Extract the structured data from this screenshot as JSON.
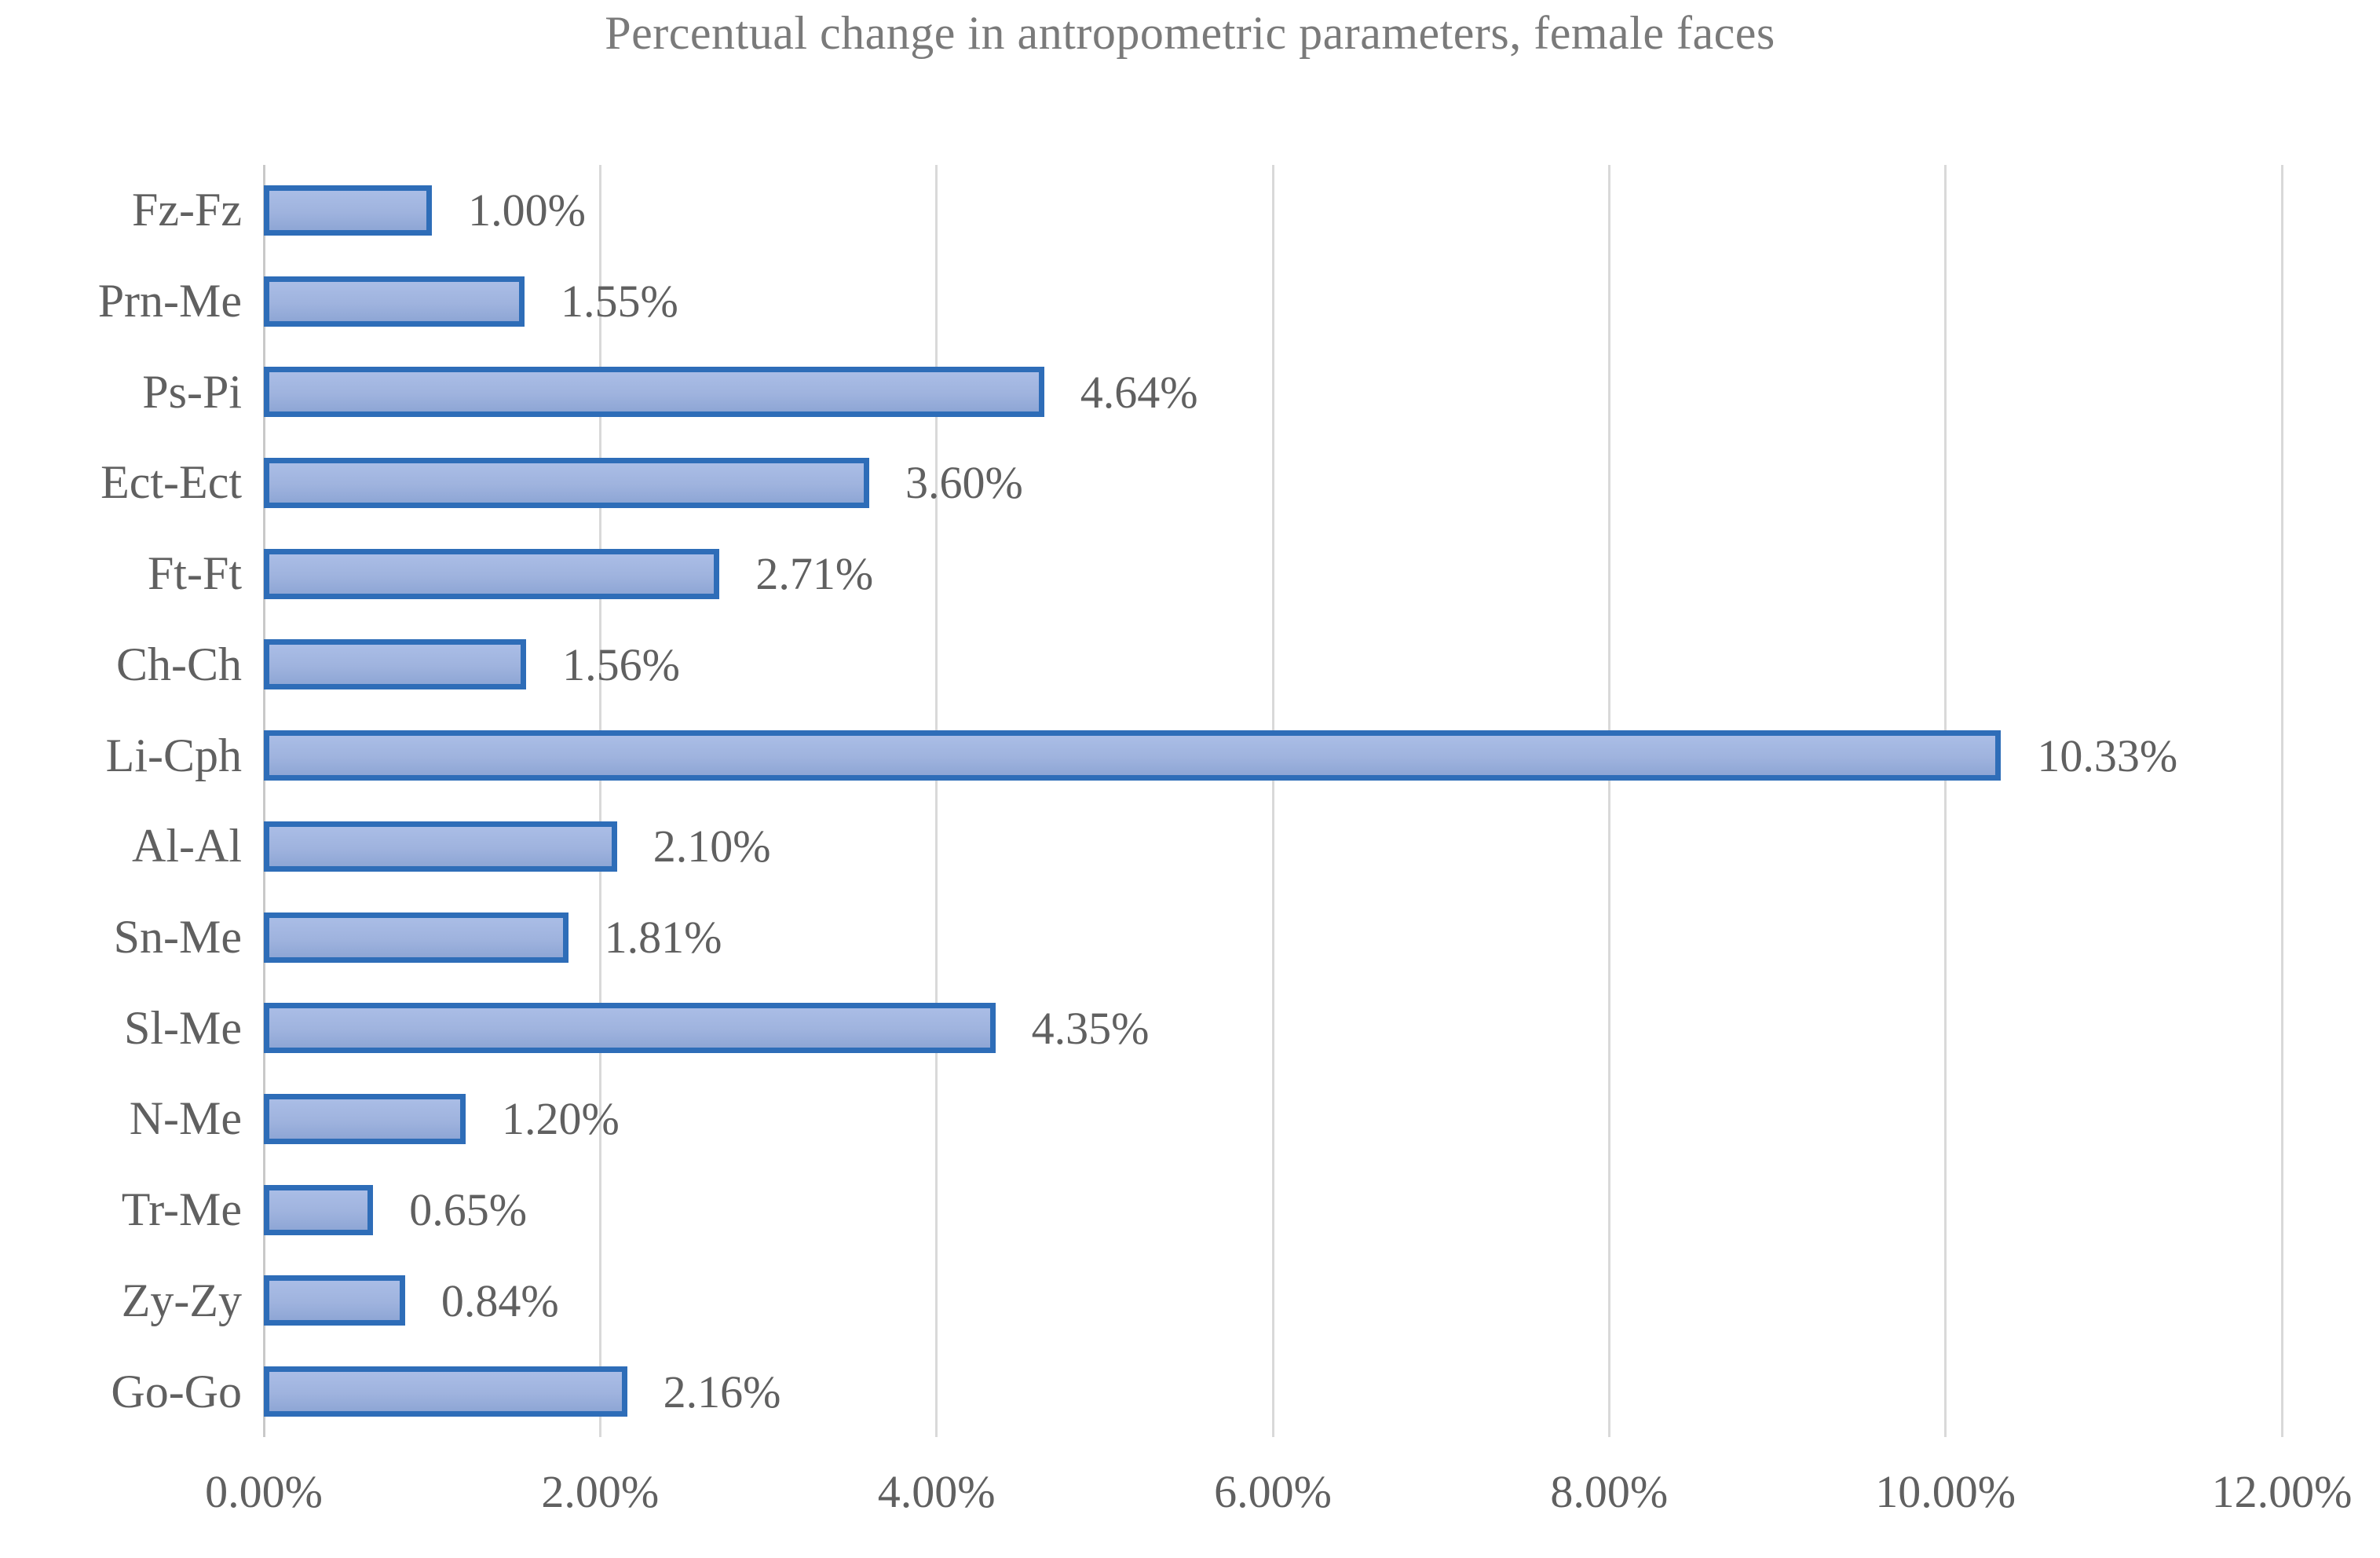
{
  "chart_data": {
    "type": "bar",
    "orientation": "horizontal",
    "title": "Percentual change in antropometric parameters, female faces",
    "categories": [
      "Fz-Fz",
      "Prn-Me",
      "Ps-Pi",
      "Ect-Ect",
      "Ft-Ft",
      "Ch-Ch",
      "Li-Cph",
      "Al-Al",
      "Sn-Me",
      "Sl-Me",
      "N-Me",
      "Tr-Me",
      "Zy-Zy",
      "Go-Go"
    ],
    "values": [
      1.0,
      1.55,
      4.64,
      3.6,
      2.71,
      1.56,
      10.33,
      2.1,
      1.81,
      4.35,
      1.2,
      0.65,
      0.84,
      2.16
    ],
    "value_labels": [
      "1.00%",
      "1.55%",
      "4.64%",
      "3.60%",
      "2.71%",
      "1.56%",
      "10.33%",
      "2.10%",
      "1.81%",
      "4.35%",
      "1.20%",
      "0.65%",
      "0.84%",
      "2.16%"
    ],
    "xlabel": "",
    "ylabel": "",
    "xlim": [
      0,
      12
    ],
    "x_tick_values": [
      0,
      2,
      4,
      6,
      8,
      10,
      12
    ],
    "x_ticks": [
      "0.00%",
      "2.00%",
      "4.00%",
      "6.00%",
      "8.00%",
      "10.00%",
      "12.00%"
    ],
    "grid": "vertical-only",
    "legend": "none"
  },
  "colors": {
    "bar_border": "#2e6db8",
    "bar_fill_top": "#aabde6",
    "bar_fill_mid": "#9fb3de",
    "bar_fill_bottom": "#8ea6d5",
    "gridline": "#d9d9d9",
    "axis_line": "#c9c9c9",
    "tick_text": "#606060",
    "title_text": "#7a7a7a"
  }
}
